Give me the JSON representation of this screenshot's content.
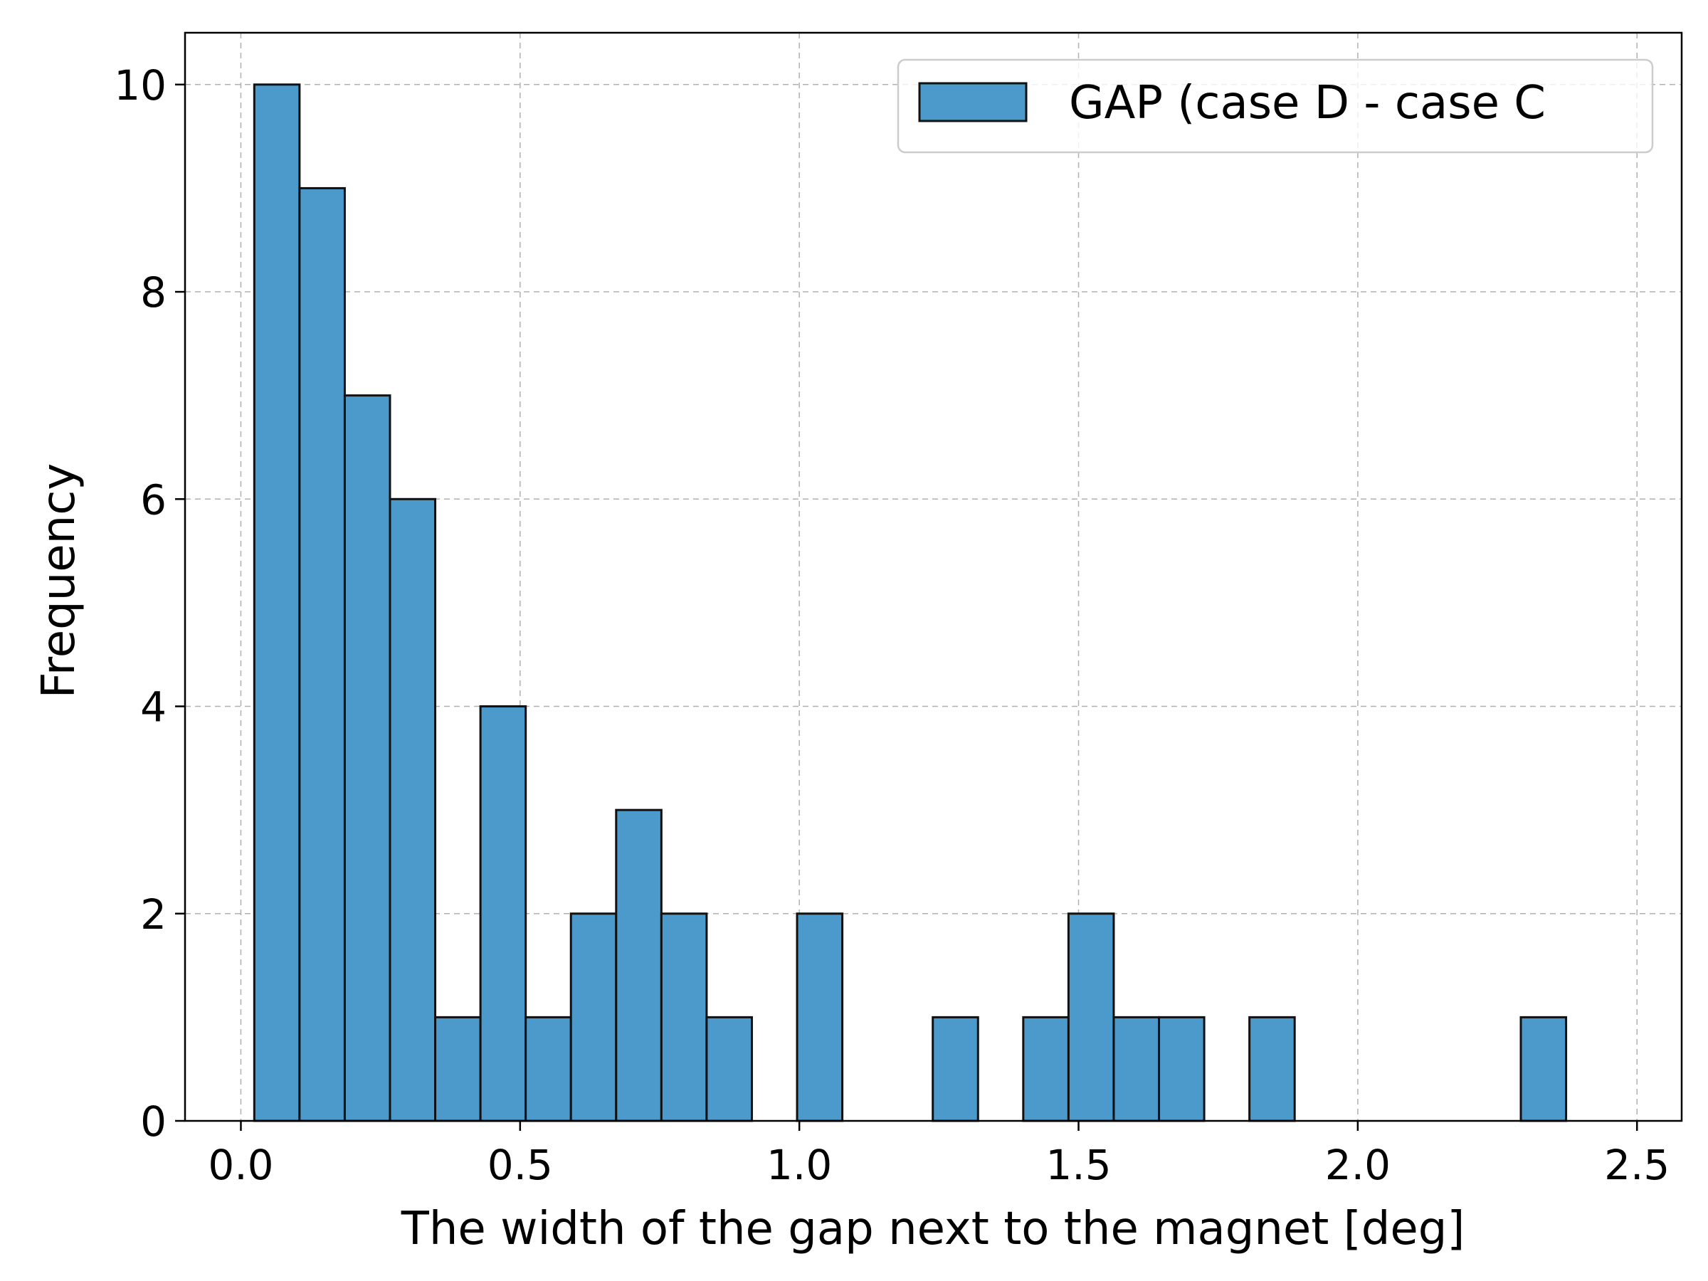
{
  "chart_data": {
    "type": "bar",
    "subtype": "histogram",
    "xlabel": "The width of the gap next to the magnet [deg]",
    "ylabel": "Frequency",
    "xlim": [
      -0.1,
      2.58
    ],
    "ylim": [
      0,
      10.5
    ],
    "xticks": [
      0.0,
      0.5,
      1.0,
      1.5,
      2.0,
      2.5
    ],
    "xtick_labels": [
      "0.0",
      "0.5",
      "1.0",
      "1.5",
      "2.0",
      "2.5"
    ],
    "yticks": [
      0,
      2,
      4,
      6,
      8,
      10
    ],
    "ytick_labels": [
      "0",
      "2",
      "4",
      "6",
      "8",
      "10"
    ],
    "grid": true,
    "legend_position": "top-right",
    "bin_start": 0.024,
    "bin_width": 0.081,
    "series": [
      {
        "name": "GAP (case D - case C",
        "color": "#4c99cc",
        "edge_color": "#111111",
        "values": [
          10,
          9,
          7,
          6,
          1,
          4,
          1,
          2,
          3,
          2,
          1,
          0,
          2,
          0,
          0,
          1,
          0,
          1,
          2,
          1,
          1,
          0,
          1,
          0,
          0,
          0,
          0,
          0,
          1
        ]
      }
    ]
  }
}
